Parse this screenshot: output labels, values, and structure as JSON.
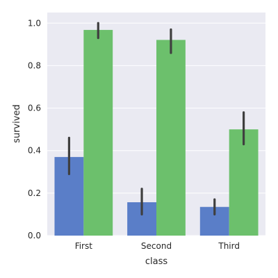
{
  "chart_data": {
    "type": "bar",
    "title": "",
    "xlabel": "class",
    "ylabel": "survived",
    "categories": [
      "First",
      "Second",
      "Third"
    ],
    "ylim": [
      0.0,
      1.05
    ],
    "yticks": [
      0.0,
      0.2,
      0.4,
      0.6,
      0.8,
      1.0
    ],
    "ytick_labels": [
      "0.0",
      "0.2",
      "0.4",
      "0.6",
      "0.8",
      "1.0"
    ],
    "grid": true,
    "series": [
      {
        "color": "#5a7ec8",
        "values": [
          0.37,
          0.157,
          0.135
        ],
        "ci": [
          [
            0.29,
            0.46
          ],
          [
            0.1,
            0.22
          ],
          [
            0.1,
            0.17
          ]
        ]
      },
      {
        "color": "#6cc06c",
        "values": [
          0.968,
          0.921,
          0.5
        ],
        "ci": [
          [
            0.93,
            1.0
          ],
          [
            0.86,
            0.97
          ],
          [
            0.43,
            0.58
          ]
        ]
      }
    ]
  }
}
